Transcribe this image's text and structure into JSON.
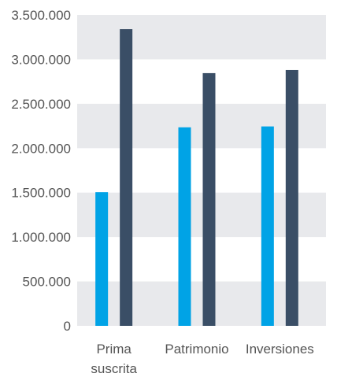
{
  "chart_data": {
    "type": "bar",
    "categories": [
      [
        "Prima",
        "suscrita"
      ],
      [
        "Patrimonio"
      ],
      [
        "Inversiones"
      ]
    ],
    "series": [
      {
        "values": [
          1505000,
          2235000,
          2245000
        ],
        "color": "#00a3e6"
      },
      {
        "values": [
          3340000,
          2845000,
          2880000
        ],
        "color": "#3a4e66"
      }
    ],
    "ylim": [
      0,
      3500000
    ],
    "yticks": [
      0,
      500000,
      1000000,
      1500000,
      2000000,
      2500000,
      3000000,
      3500000
    ],
    "ytick_labels": [
      "0",
      "500.000",
      "1.000.000",
      "1.500.000",
      "2.000.000",
      "2.500.000",
      "3.000.000",
      "3.500.000"
    ],
    "grid": true,
    "band_color": "#e8e9ec",
    "title": "",
    "xlabel": "",
    "ylabel": ""
  }
}
